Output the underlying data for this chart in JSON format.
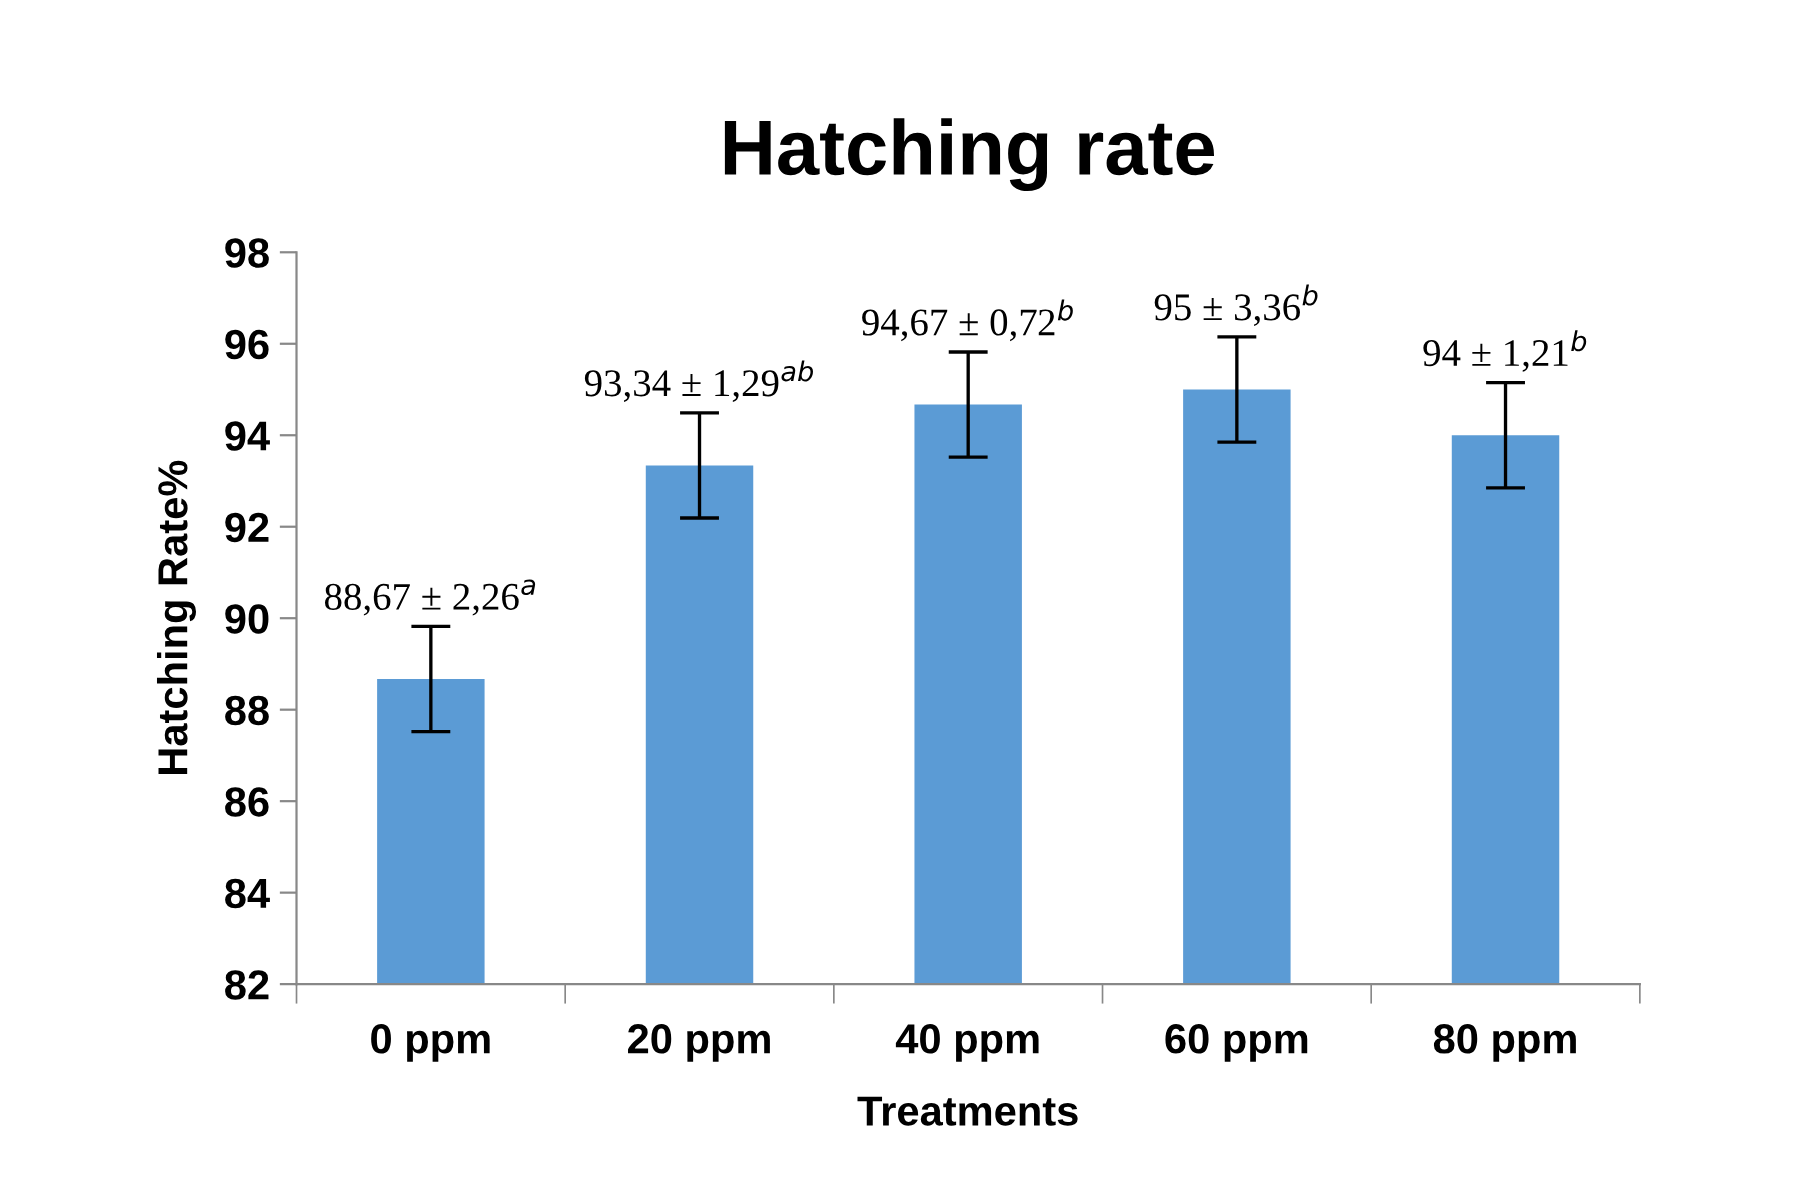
{
  "chart_data": {
    "type": "bar",
    "title": "Hatching rate",
    "xlabel": "Treatments",
    "ylabel": "Hatching Rate%",
    "categories": [
      "0 ppm",
      "20 ppm",
      "40 ppm",
      "60 ppm",
      "80 ppm"
    ],
    "values": [
      88.67,
      93.34,
      94.67,
      95,
      94
    ],
    "errors": [
      1.15,
      1.15,
      1.15,
      1.15,
      1.15
    ],
    "value_labels": [
      "88,67 ± 2,26$^{a}$",
      "93,34 ± 1,29$^{ab}$",
      "94,67 ± 0,72$^{b}$",
      "95 ± 3,36$^{b}$",
      "94 ± 1,21$^{b}$"
    ],
    "color": "#5b9bd5",
    "ylim": [
      82,
      98
    ],
    "yticks": [
      82,
      84,
      86,
      88,
      90,
      92,
      94,
      96,
      98
    ],
    "grid": false,
    "legend": false
  }
}
